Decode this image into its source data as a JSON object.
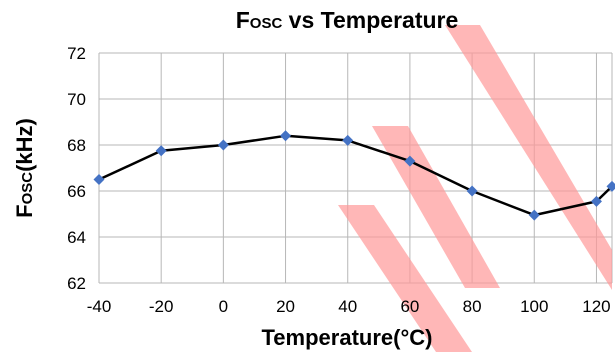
{
  "chart_data": {
    "type": "line",
    "title": {
      "main": "F",
      "sub": "OSC",
      "rest": " vs Temperature"
    },
    "xlabel": "Temperature(°C)",
    "ylabel": {
      "main": "F",
      "sub": "OSC",
      "rest": "(kHz)"
    },
    "xlim": [
      -40,
      125
    ],
    "ylim": [
      62,
      72
    ],
    "xticks": [
      -40,
      -20,
      0,
      20,
      40,
      60,
      80,
      100,
      120
    ],
    "yticks": [
      62,
      64,
      66,
      68,
      70,
      72
    ],
    "grid": true,
    "series": [
      {
        "line_color": "#000000",
        "marker_color": "#4472c4",
        "marker": "diamond",
        "points": [
          {
            "x": -40,
            "y": 66.5
          },
          {
            "x": -20,
            "y": 67.75
          },
          {
            "x": 0,
            "y": 68.0
          },
          {
            "x": 20,
            "y": 68.4
          },
          {
            "x": 40,
            "y": 68.2
          },
          {
            "x": 60,
            "y": 67.3
          },
          {
            "x": 80,
            "y": 66.0
          },
          {
            "x": 100,
            "y": 64.95
          },
          {
            "x": 120,
            "y": 65.55
          },
          {
            "x": 125,
            "y": 66.2
          }
        ]
      }
    ]
  },
  "watermark_color": "#ff9999"
}
